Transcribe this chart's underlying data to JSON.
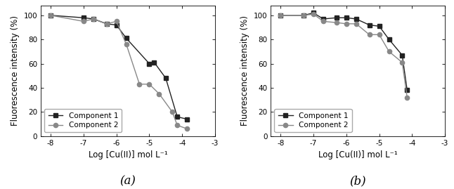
{
  "panel_a": {
    "comp1_x": [
      -8,
      -7,
      -6.7,
      -6.3,
      -6,
      -5.7,
      -5,
      -4.85,
      -4.5,
      -4.15,
      -3.85
    ],
    "comp1_y": [
      100,
      98,
      97,
      93,
      92,
      81,
      60,
      61,
      48,
      16,
      14
    ],
    "comp2_x": [
      -8,
      -7,
      -6.7,
      -6.3,
      -6,
      -5.7,
      -5.3,
      -5,
      -4.7,
      -4.3,
      -4.15,
      -3.85
    ],
    "comp2_y": [
      100,
      95,
      97,
      93,
      95,
      76,
      43,
      43,
      35,
      20,
      9,
      6
    ],
    "xlabel": "Log [Cu(II)] mol L⁻¹",
    "ylabel": "Fluorescence intensity (%)",
    "label": "(a)",
    "xlim": [
      -8.3,
      -3.0
    ],
    "ylim": [
      0,
      108
    ],
    "xticks": [
      -8,
      -7,
      -6,
      -5,
      -4,
      -3
    ],
    "yticks": [
      0,
      20,
      40,
      60,
      80,
      100
    ]
  },
  "panel_b": {
    "comp1_x": [
      -8,
      -7.3,
      -7,
      -6.7,
      -6.3,
      -6,
      -5.7,
      -5.3,
      -5,
      -4.7,
      -4.3,
      -4.15
    ],
    "comp1_y": [
      100,
      100,
      102,
      97,
      98,
      98,
      97,
      92,
      91,
      80,
      67,
      38
    ],
    "comp2_x": [
      -8,
      -7.3,
      -7,
      -6.7,
      -6.3,
      -6,
      -5.7,
      -5.3,
      -5,
      -4.7,
      -4.3,
      -4.15
    ],
    "comp2_y": [
      100,
      100,
      101,
      95,
      94,
      93,
      93,
      84,
      84,
      70,
      61,
      32
    ],
    "xlabel": "Log [Cu(II)] mol L⁻¹",
    "ylabel": "Fluorescence intensity (%)",
    "label": "(b)",
    "xlim": [
      -8.3,
      -3.0
    ],
    "ylim": [
      0,
      108
    ],
    "xticks": [
      -8,
      -7,
      -6,
      -5,
      -4,
      -3
    ],
    "yticks": [
      0,
      20,
      40,
      60,
      80,
      100
    ]
  },
  "comp1_color": "#222222",
  "comp2_color": "#888888",
  "comp1_label": "Component 1",
  "comp2_label": "Component 2",
  "comp1_marker": "s",
  "comp2_marker": "o",
  "linewidth": 1.0,
  "markersize": 4.5,
  "background_color": "#ffffff",
  "legend_fontsize": 7.5,
  "tick_fontsize": 7.5,
  "label_fontsize": 8.5,
  "sublabel_fontsize": 12
}
